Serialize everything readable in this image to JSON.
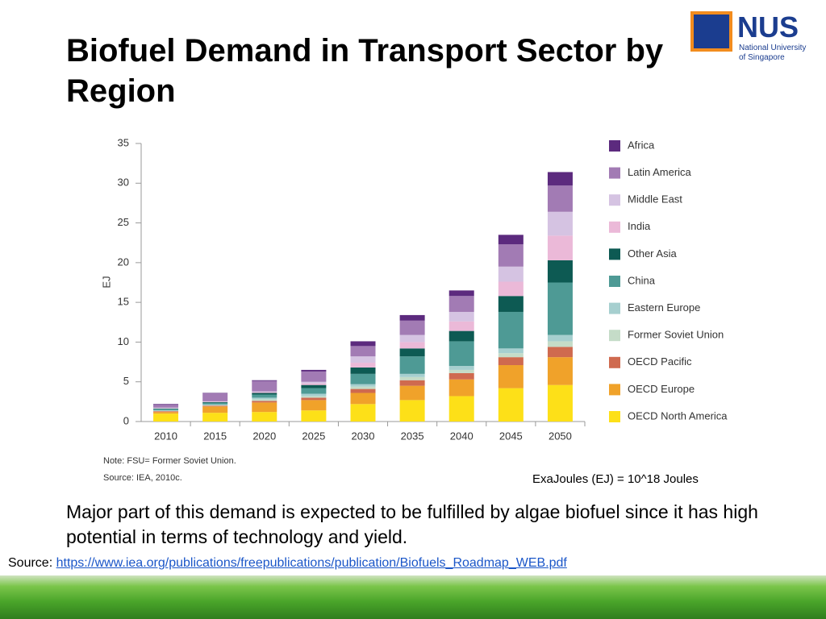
{
  "slide_title": "Biofuel Demand in Transport Sector by Region",
  "logo": {
    "acronym": "NUS",
    "line1": "National University",
    "line2": "of Singapore"
  },
  "chart_data": {
    "type": "stacked_bar",
    "y_label": "EJ",
    "categories": [
      "2010",
      "2015",
      "2020",
      "2025",
      "2030",
      "2035",
      "2040",
      "2045",
      "2050"
    ],
    "series": [
      {
        "name": "OECD North America",
        "color": "#fde018",
        "values": [
          1.0,
          1.1,
          1.2,
          1.4,
          2.2,
          2.7,
          3.2,
          4.2,
          4.6
        ]
      },
      {
        "name": "OECD Europe",
        "color": "#f0a22a",
        "values": [
          0.2,
          0.8,
          1.2,
          1.3,
          1.4,
          1.8,
          2.1,
          2.9,
          3.5
        ]
      },
      {
        "name": "OECD Pacific",
        "color": "#cf6a4f",
        "values": [
          0.1,
          0.1,
          0.2,
          0.3,
          0.5,
          0.7,
          0.8,
          1.0,
          1.3
        ]
      },
      {
        "name": "Former Soviet Union",
        "color": "#c5dcc8",
        "values": [
          0.05,
          0.05,
          0.2,
          0.2,
          0.3,
          0.4,
          0.4,
          0.5,
          0.7
        ]
      },
      {
        "name": "Eastern Europe",
        "color": "#a6cfcf",
        "values": [
          0.05,
          0.1,
          0.2,
          0.3,
          0.3,
          0.4,
          0.5,
          0.6,
          0.8
        ]
      },
      {
        "name": "China",
        "color": "#4e9a95",
        "values": [
          0.2,
          0.2,
          0.4,
          0.7,
          1.3,
          2.2,
          3.1,
          4.6,
          6.6
        ]
      },
      {
        "name": "Other Asia",
        "color": "#0d5a53",
        "values": [
          0.05,
          0.1,
          0.2,
          0.4,
          0.8,
          1.0,
          1.3,
          2.0,
          2.8
        ]
      },
      {
        "name": "India",
        "color": "#ebb9d8",
        "values": [
          0.05,
          0.05,
          0.1,
          0.2,
          0.6,
          0.8,
          1.2,
          1.8,
          3.1
        ]
      },
      {
        "name": "Middle East",
        "color": "#d5c3e2",
        "values": [
          0.05,
          0.05,
          0.1,
          0.2,
          0.8,
          0.9,
          1.2,
          1.9,
          3.0
        ]
      },
      {
        "name": "Latin America",
        "color": "#a27bb4",
        "values": [
          0.35,
          1.0,
          1.3,
          1.3,
          1.3,
          1.8,
          2.0,
          2.8,
          3.3
        ]
      },
      {
        "name": "Africa",
        "color": "#5c2a7e",
        "values": [
          0.1,
          0.05,
          0.1,
          0.2,
          0.6,
          0.7,
          0.7,
          1.2,
          1.7
        ]
      }
    ],
    "ylim": [
      0,
      35
    ],
    "yticks": [
      0,
      5,
      10,
      15,
      20,
      25,
      30,
      35
    ],
    "notes": [
      "Note: FSU= Former Soviet Union.",
      "Source: IEA, 2010c."
    ]
  },
  "unit_note": "ExaJoules (EJ)  = 10^18 Joules",
  "body_text": "Major part of this demand is expected to be fulfilled by algae biofuel since it has high potential in terms of technology and yield.",
  "source": {
    "label": "Source:",
    "url": "https://www.iea.org/publications/freepublications/publication/Biofuels_Roadmap_WEB.pdf"
  }
}
